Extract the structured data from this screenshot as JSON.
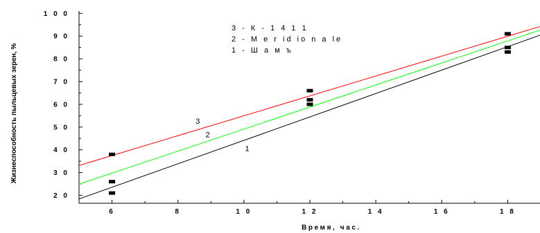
{
  "chart_data": {
    "type": "scatter",
    "xlabel": "Время, час.",
    "ylabel": "Жизнеспособность пыльцевых зерен, %",
    "xlim": [
      5,
      19
    ],
    "ylim": [
      16.5,
      101
    ],
    "x_ticks": [
      6,
      8,
      10,
      12,
      14,
      16,
      18
    ],
    "x_tick_labels": [
      "6",
      "8",
      "1 0",
      "1 2",
      "1 4",
      "1 6",
      "1 8"
    ],
    "y_ticks": [
      20,
      30,
      40,
      50,
      60,
      70,
      80,
      90,
      100
    ],
    "y_tick_labels": [
      "2 0",
      "3 0",
      "4 0",
      "5 0",
      "6 0",
      "7 0",
      "8 0",
      "9 0",
      "1 0 0"
    ],
    "legend": [
      "3 - К-1411",
      "2 - Meridionale",
      "1 - Шамъ"
    ],
    "legend_display": [
      "3 - К - 1 4 1 1",
      "2 - M e r id io n a le",
      "1 - Ш а м ъ"
    ],
    "series": [
      {
        "name": "3",
        "color": "#ff0000",
        "line": {
          "x": [
            5,
            19
          ],
          "y": [
            33.1,
            94.3
          ]
        },
        "points": {
          "x": [
            6
          ],
          "y": [
            38
          ]
        },
        "label_at": {
          "x": 8.6,
          "y": 51.5
        }
      },
      {
        "name": "2",
        "color": "#00ff00",
        "line": {
          "x": [
            5,
            19
          ],
          "y": [
            24.9,
            92.7
          ]
        },
        "points": {
          "x": [],
          "y": []
        },
        "label_at": {
          "x": 8.9,
          "y": 45.5
        }
      },
      {
        "name": "1",
        "color": "#000000",
        "line": {
          "x": [
            5,
            19
          ],
          "y": [
            18.4,
            90.5
          ]
        },
        "points": {
          "x": [
            6,
            6,
            12,
            12,
            12,
            18,
            18,
            18
          ],
          "y": [
            26,
            21,
            66,
            62,
            60,
            91,
            85,
            83
          ]
        },
        "label_at": {
          "x": 10.1,
          "y": 39.5
        }
      }
    ]
  }
}
